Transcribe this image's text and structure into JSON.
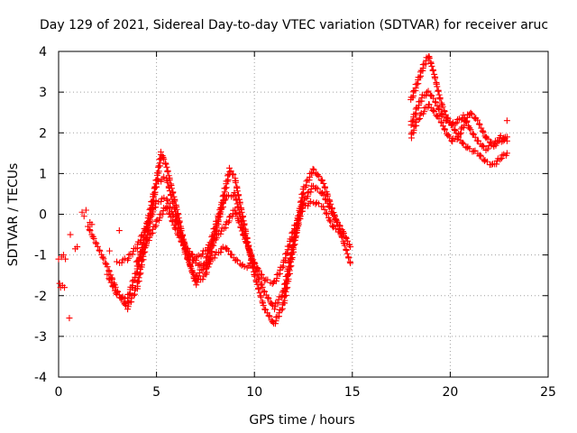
{
  "chart_data": {
    "type": "scatter",
    "title": "Day 129 of 2021, Sidereal Day-to-day VTEC variation (SDTVAR) for receiver aruc",
    "xlabel": "GPS time / hours",
    "ylabel": "SDTVAR / TECUs",
    "xlim": [
      0,
      25
    ],
    "ylim": [
      -4,
      4
    ],
    "xticks": [
      0,
      5,
      10,
      15,
      20,
      25
    ],
    "yticks": [
      -4,
      -3,
      -2,
      -1,
      0,
      1,
      2,
      3,
      4
    ],
    "grid": true,
    "marker": "+",
    "colors": {
      "series": "#ff0000",
      "grid": "#a0a0a0",
      "axis": "#000000"
    },
    "series": [
      {
        "name": "satellite-trace-1",
        "x": [
          1.5,
          2.0,
          2.5,
          3.0,
          3.5,
          4.0,
          4.5,
          5.0,
          5.25,
          5.5,
          6.0,
          6.5,
          7.0,
          7.5,
          8.0,
          8.5,
          8.75,
          9.0,
          9.5,
          10.0,
          10.5,
          11.0,
          11.5,
          12.0,
          12.5,
          13.0,
          13.5,
          14.0,
          14.5,
          14.9
        ],
        "y": [
          -0.3,
          -0.8,
          -1.3,
          -1.9,
          -2.3,
          -1.8,
          -0.6,
          0.8,
          1.5,
          1.2,
          0.2,
          -0.9,
          -1.7,
          -1.5,
          -0.5,
          0.6,
          1.1,
          0.9,
          -0.3,
          -1.5,
          -2.3,
          -2.7,
          -2.2,
          -0.8,
          0.6,
          1.1,
          0.8,
          0.1,
          -0.6,
          -1.2
        ]
      },
      {
        "name": "satellite-trace-2",
        "x": [
          2.5,
          3.0,
          3.5,
          4.0,
          4.5,
          5.0,
          5.5,
          6.0,
          6.5,
          7.0,
          7.5,
          8.0,
          8.5,
          9.0,
          9.5,
          10.0,
          10.5,
          11.0,
          11.5,
          12.0,
          12.5,
          13.0,
          13.5,
          14.0,
          14.5,
          14.9
        ],
        "y": [
          -1.5,
          -2.0,
          -2.1,
          -1.4,
          -0.3,
          0.8,
          0.9,
          0.0,
          -1.0,
          -1.6,
          -1.2,
          -0.3,
          0.4,
          0.5,
          -0.5,
          -1.3,
          -1.9,
          -2.3,
          -1.9,
          -0.7,
          0.3,
          0.7,
          0.5,
          0.0,
          -0.4,
          -0.8
        ]
      },
      {
        "name": "satellite-trace-3",
        "x": [
          3.0,
          3.5,
          4.0,
          4.5,
          5.0,
          5.5,
          6.0,
          6.5,
          7.0,
          7.5,
          8.0,
          8.5,
          9.0,
          9.5,
          10.0,
          10.5,
          11.0,
          11.5,
          12.0,
          12.5,
          13.0,
          13.5,
          14.0,
          14.5
        ],
        "y": [
          -1.2,
          -1.1,
          -0.8,
          -0.3,
          0.3,
          0.4,
          -0.2,
          -0.8,
          -1.1,
          -0.9,
          -0.6,
          -0.3,
          0.1,
          -0.6,
          -1.2,
          -1.6,
          -1.7,
          -1.2,
          -0.4,
          0.2,
          0.3,
          0.2,
          -0.3,
          -0.5
        ]
      },
      {
        "name": "satellite-trace-4",
        "x": [
          4.0,
          4.5,
          5.0,
          5.5,
          6.0,
          6.5,
          7.0,
          7.5,
          8.0,
          8.5,
          9.0,
          9.5,
          10.0
        ],
        "y": [
          -1.2,
          -0.7,
          -0.2,
          0.2,
          -0.4,
          -0.9,
          -1.2,
          -1.3,
          -1.0,
          -0.8,
          -1.1,
          -1.3,
          -1.2
        ]
      },
      {
        "name": "satellite-trace-5",
        "x": [
          18.0,
          18.3,
          18.6,
          18.9,
          19.2,
          19.5,
          19.8,
          20.1,
          20.4,
          20.7,
          21.0,
          21.4,
          21.8,
          22.2,
          22.6,
          22.9
        ],
        "y": [
          2.8,
          3.2,
          3.6,
          3.9,
          3.4,
          2.8,
          2.4,
          2.2,
          1.9,
          1.7,
          1.6,
          1.5,
          1.3,
          1.2,
          1.4,
          1.5
        ]
      },
      {
        "name": "satellite-trace-6",
        "x": [
          18.0,
          18.3,
          18.6,
          18.9,
          19.2,
          19.5,
          19.8,
          20.1,
          20.4,
          20.7,
          21.0,
          21.4,
          21.8,
          22.2,
          22.6,
          22.9
        ],
        "y": [
          2.2,
          2.6,
          2.9,
          3.0,
          2.8,
          2.5,
          2.3,
          2.2,
          2.3,
          2.4,
          2.1,
          1.8,
          1.6,
          1.7,
          1.9,
          1.8
        ]
      },
      {
        "name": "satellite-trace-7",
        "x": [
          18.0,
          18.3,
          18.6,
          18.9,
          19.2,
          19.5,
          19.8,
          20.1,
          20.4,
          20.7,
          21.0,
          21.4,
          21.8,
          22.2,
          22.6,
          22.9
        ],
        "y": [
          1.9,
          2.3,
          2.5,
          2.7,
          2.5,
          2.3,
          2.0,
          1.8,
          1.9,
          2.2,
          2.5,
          2.3,
          1.9,
          1.7,
          1.8,
          1.9
        ]
      },
      {
        "name": "isolated-points",
        "x": [
          0.0,
          0.05,
          0.1,
          0.15,
          0.2,
          0.25,
          0.3,
          0.35,
          0.55,
          0.6,
          0.85,
          0.95,
          1.2,
          1.3,
          1.4,
          1.6,
          1.7,
          2.6,
          3.1,
          22.9
        ],
        "y": [
          -1.1,
          -1.7,
          -1.8,
          -1.05,
          -1.75,
          -1.0,
          -1.8,
          -1.1,
          -2.55,
          -0.5,
          -0.85,
          -0.8,
          0.05,
          -0.05,
          0.1,
          -0.2,
          -0.25,
          -0.9,
          -0.4,
          2.3
        ]
      }
    ]
  }
}
